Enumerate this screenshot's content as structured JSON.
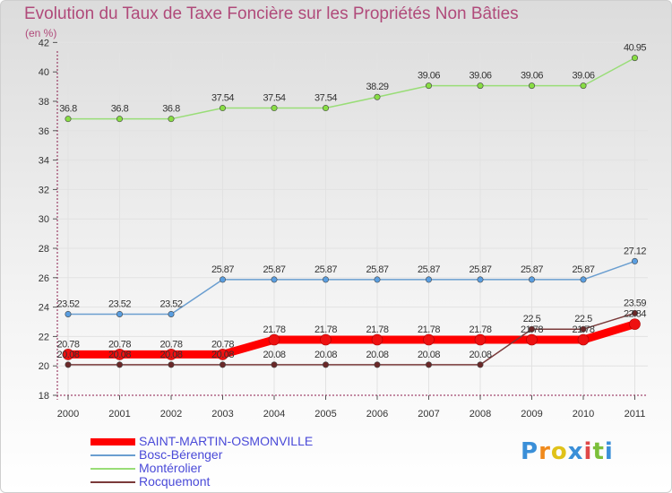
{
  "chart_data": {
    "type": "line",
    "title": "Evolution du Taux de Taxe Foncière sur les Propriétés Non Bâties",
    "ylabel": "(en %)",
    "xlabel": "",
    "ylim": [
      18,
      42
    ],
    "yticks": [
      18,
      20,
      22,
      24,
      26,
      28,
      30,
      32,
      34,
      36,
      38,
      40,
      42
    ],
    "x": [
      "2000",
      "2001",
      "2002",
      "2003",
      "2004",
      "2005",
      "2006",
      "2007",
      "2008",
      "2009",
      "2010",
      "2011"
    ],
    "series": [
      {
        "name": "SAINT-MARTIN-OSMONVILLE",
        "color": "#ff0000",
        "values": [
          20.78,
          20.78,
          20.78,
          20.78,
          21.78,
          21.78,
          21.78,
          21.78,
          21.78,
          21.78,
          21.78,
          22.84
        ],
        "labels": [
          "20.78",
          "20.78",
          "20.78",
          "20.78",
          "21.78",
          "21.78",
          "21.78",
          "21.78",
          "21.78",
          "21.78",
          "21.78",
          "22.84"
        ]
      },
      {
        "name": "Bosc-Bérenger",
        "color": "#6a9ed0",
        "values": [
          23.52,
          23.52,
          23.52,
          25.87,
          25.87,
          25.87,
          25.87,
          25.87,
          25.87,
          25.87,
          25.87,
          27.12
        ],
        "labels": [
          "23.52",
          "23.52",
          "23.52",
          "25.87",
          "25.87",
          "25.87",
          "25.87",
          "25.87",
          "25.87",
          "25.87",
          "25.87",
          "27.12"
        ]
      },
      {
        "name": "Montérolier",
        "color": "#99dd77",
        "values": [
          36.8,
          36.8,
          36.8,
          37.54,
          37.54,
          37.54,
          38.29,
          39.06,
          39.06,
          39.06,
          39.06,
          40.95
        ],
        "labels": [
          "36.8",
          "36.8",
          "36.8",
          "37.54",
          "37.54",
          "37.54",
          "38.29",
          "39.06",
          "39.06",
          "39.06",
          "39.06",
          "40.95"
        ]
      },
      {
        "name": "Rocquemont",
        "color": "#7a3a3a",
        "values": [
          20.08,
          20.08,
          20.08,
          20.08,
          20.08,
          20.08,
          20.08,
          20.08,
          20.08,
          22.5,
          22.5,
          23.59
        ],
        "labels": [
          "20.08",
          "20.08",
          "20.08",
          "20.08",
          "20.08",
          "20.08",
          "20.08",
          "20.08",
          "20.08",
          "22.5",
          "22.5",
          "23.59"
        ]
      }
    ]
  },
  "logo": {
    "letters": [
      "P",
      "r",
      "o",
      "x",
      "i",
      "t",
      "i"
    ],
    "colors": [
      "#3a8fd8",
      "#f08a1c",
      "#e0c21a",
      "#3a8fd8",
      "#e04848",
      "#7cbf3a",
      "#3a8fd8"
    ]
  }
}
